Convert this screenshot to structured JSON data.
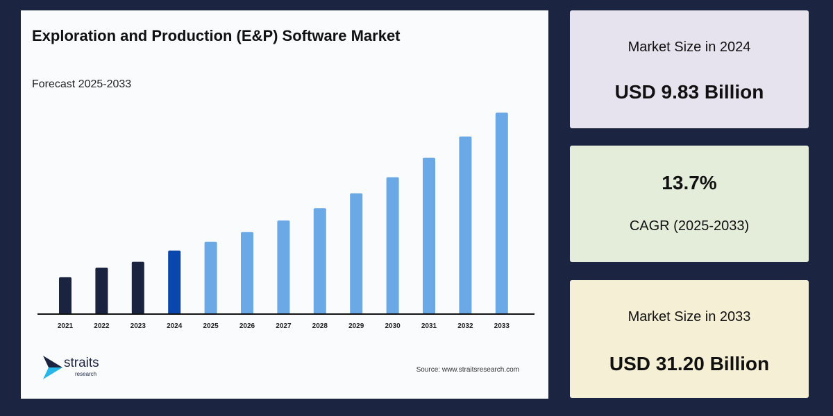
{
  "chart_data": {
    "type": "bar",
    "title": "Exploration and Production (E&P) Software Market",
    "subtitle": "Forecast 2025-2033",
    "categories": [
      "2021",
      "2022",
      "2023",
      "2024",
      "2025",
      "2026",
      "2027",
      "2028",
      "2029",
      "2030",
      "2031",
      "2032",
      "2033"
    ],
    "values": [
      5.7,
      7.2,
      8.1,
      9.83,
      11.2,
      12.7,
      14.5,
      16.4,
      18.7,
      21.2,
      24.2,
      27.5,
      31.2
    ],
    "ylim": [
      0,
      32
    ],
    "grid": false,
    "colors": {
      "historical": "#1a2340",
      "base_year": "#0a47ac",
      "forecast": "#6aa8e6"
    },
    "xlabel": "",
    "ylabel": ""
  },
  "source": "Source: www.straitsresearch.com",
  "logo": {
    "name": "straits",
    "sub": "research"
  },
  "stats": [
    {
      "label": "Market Size in 2024",
      "value": "USD 9.83 Billion"
    },
    {
      "value": "13.7%",
      "label": "CAGR (2025-2033)"
    },
    {
      "label": "Market Size in 2033",
      "value": "USD 31.20 Billion"
    }
  ]
}
